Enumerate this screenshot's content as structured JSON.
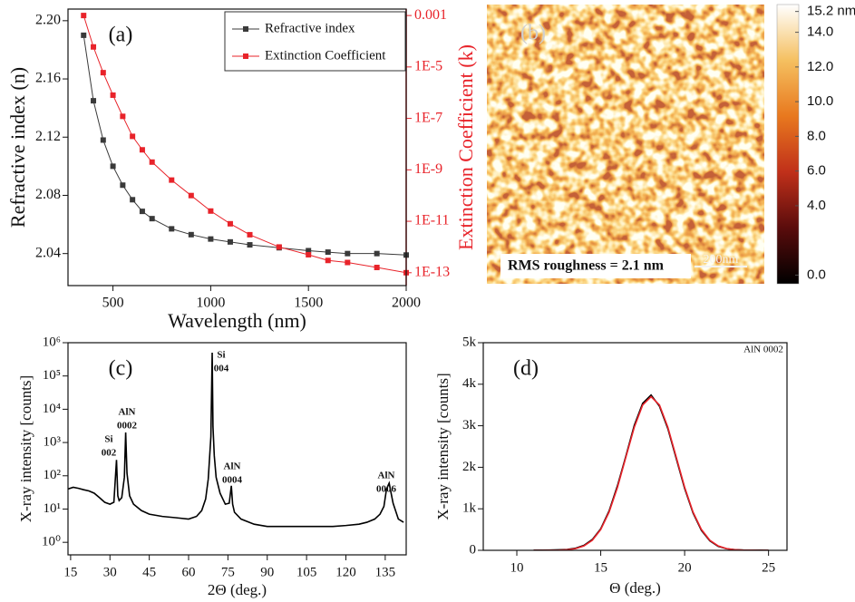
{
  "chart_data": [
    {
      "type": "line",
      "label": "(a)",
      "xlabel": "Wavelength (nm)",
      "ylabel": "Refractive index (n)",
      "y2label": "Extinction Coefficient (k)",
      "x": [
        350,
        400,
        450,
        500,
        550,
        600,
        650,
        700,
        800,
        900,
        1000,
        1100,
        1200,
        1350,
        1500,
        1600,
        1700,
        1850,
        2000
      ],
      "series": [
        {
          "name": "Refractive index",
          "color": "#3a3a3a",
          "values": [
            2.19,
            2.145,
            2.118,
            2.1,
            2.087,
            2.077,
            2.069,
            2.064,
            2.057,
            2.053,
            2.05,
            2.048,
            2.046,
            2.044,
            2.042,
            2.041,
            2.04,
            2.04,
            2.039
          ]
        },
        {
          "name": "Extinction Coefficient",
          "color": "#e8232a",
          "axis": "y2",
          "values": [
            0.001,
            6e-05,
            6e-06,
            8e-07,
            1.2e-07,
            2e-08,
            6e-09,
            2e-09,
            4e-10,
            1e-10,
            2.5e-11,
            8e-12,
            3e-12,
            1e-12,
            5e-13,
            3e-13,
            2.5e-13,
            1.6e-13,
            1e-13
          ]
        }
      ],
      "xlim": [
        270,
        2000
      ],
      "xticks": [
        500,
        1000,
        1500,
        2000
      ],
      "ylim": [
        2.018,
        2.208
      ],
      "yticks": [
        2.04,
        2.08,
        2.12,
        2.16,
        {
          "value": 2.2,
          "label": "2.20"
        }
      ],
      "y2lim": [
        3.16e-14,
        0.00178
      ],
      "y2log": true,
      "y2ticks": [
        0.001,
        {
          "value": 1e-05,
          "label": "1E-5"
        },
        {
          "value": 1e-07,
          "label": "1E-7"
        },
        {
          "value": 1e-09,
          "label": "1E-9"
        },
        {
          "value": 1e-11,
          "label": "1E-11"
        },
        {
          "value": 1e-13,
          "label": "1E-13"
        }
      ],
      "markers": "square",
      "legend": "upper right"
    },
    {
      "type": "image",
      "label": "(b)",
      "annotation": "RMS roughness = 2.1 nm",
      "scale_bar": "200nm",
      "colorbar": {
        "lim": [
          -0.5,
          15.6
        ],
        "colormap": [
          "#000000",
          "#5a0c0c",
          "#c0301a",
          "#e8781e",
          "#f5c060",
          "#ffffff"
        ],
        "ticks": [
          {
            "value": 0,
            "label": "0.0"
          },
          {
            "value": 4,
            "label": "4.0"
          },
          {
            "value": 6,
            "label": "6.0"
          },
          {
            "value": 8,
            "label": "8.0"
          },
          {
            "value": 10,
            "label": "10.0"
          },
          {
            "value": 12,
            "label": "12.0"
          },
          {
            "value": 14,
            "label": "14.0"
          },
          {
            "value": 15.2,
            "label": "15.2 nm"
          }
        ]
      }
    },
    {
      "type": "line",
      "label": "(c)",
      "xlabel": "2Θ (deg.)",
      "ylabel": "X-ray intensity [counts]",
      "x": [
        14,
        16,
        18,
        20,
        22,
        24,
        26,
        28,
        30,
        31.5,
        32.5,
        33,
        33.5,
        34.5,
        35.5,
        36,
        36.5,
        37.5,
        39,
        42,
        45,
        50,
        55,
        60,
        63,
        65,
        66.5,
        67.5,
        68.5,
        69,
        69.3,
        69.8,
        70.5,
        72,
        74,
        75.5,
        76.3,
        76.8,
        77.5,
        80,
        85,
        90,
        95,
        100,
        105,
        110,
        115,
        120,
        125,
        128,
        131,
        133,
        134.5,
        135.5,
        136.5,
        138,
        140,
        142
      ],
      "series": [
        {
          "color": "#000000",
          "values": [
            40,
            45,
            42,
            38,
            35,
            30,
            22,
            16,
            14,
            16,
            300,
            25,
            18,
            22,
            90,
            2000,
            120,
            25,
            14,
            9,
            7,
            6,
            5.5,
            5,
            6,
            9,
            20,
            80,
            1500,
            500000,
            3000,
            400,
            90,
            30,
            14,
            15,
            50,
            14,
            8,
            5,
            3.5,
            3,
            3,
            3,
            3,
            3,
            3,
            3.2,
            3.5,
            4,
            5,
            7,
            12,
            40,
            60,
            15,
            5,
            4
          ]
        }
      ],
      "xlim": [
        14,
        143
      ],
      "xticks": [
        15,
        30,
        45,
        60,
        75,
        90,
        105,
        120,
        135
      ],
      "ylim": [
        0.42,
        1000000
      ],
      "ylog": true,
      "yticks": [
        {
          "value": 1,
          "label": "10⁰"
        },
        {
          "value": 10,
          "label": "10¹"
        },
        {
          "value": 100,
          "label": "10²"
        },
        {
          "value": 1000,
          "label": "10³"
        },
        {
          "value": 10000,
          "label": "10⁴"
        },
        {
          "value": 100000,
          "label": "10⁵"
        },
        {
          "value": 1000000,
          "label": "10⁶"
        }
      ],
      "annotations": [
        {
          "lines": [
            "Si",
            "002"
          ]
        },
        {
          "lines": [
            "AlN",
            "0002"
          ]
        },
        {
          "lines": [
            "Si",
            "004"
          ]
        },
        {
          "lines": [
            "AlN",
            "0004"
          ]
        },
        {
          "lines": [
            "AlN",
            "0006"
          ]
        }
      ]
    },
    {
      "type": "line",
      "label": "(d)",
      "xlabel": "Θ (deg.)",
      "ylabel": "X-ray intensity [counts]",
      "annotation": "AlN 0002",
      "x": [
        11,
        11.5,
        12,
        12.5,
        13,
        13.5,
        14,
        14.5,
        15,
        15.5,
        16,
        16.5,
        17,
        17.5,
        18,
        18.5,
        19,
        19.5,
        20,
        20.5,
        21,
        21.5,
        22,
        22.5,
        23,
        23.5,
        24,
        24.5,
        25
      ],
      "series": [
        {
          "color": "#000000",
          "values": [
            3,
            5,
            8,
            12,
            20,
            50,
            120,
            260,
            520,
            950,
            1560,
            2270,
            3010,
            3540,
            3740,
            3470,
            2930,
            2210,
            1490,
            900,
            480,
            230,
            95,
            38,
            15,
            7,
            4,
            3,
            2
          ]
        },
        {
          "color": "#e8232a",
          "values": [
            0,
            0,
            1,
            4,
            14,
            41,
            106,
            243,
            501,
            922,
            1521,
            2244,
            2964,
            3500,
            3700,
            3500,
            2964,
            2244,
            1521,
            922,
            501,
            243,
            106,
            41,
            14,
            4,
            1,
            0,
            0
          ]
        }
      ],
      "xlim": [
        8,
        26.1
      ],
      "xticks": [
        10,
        15,
        20,
        25
      ],
      "ylim": [
        0,
        5000
      ],
      "yticks": [
        0,
        {
          "value": 1000,
          "label": "1k"
        },
        {
          "value": 2000,
          "label": "2k"
        },
        {
          "value": 3000,
          "label": "3k"
        },
        {
          "value": 4000,
          "label": "4k"
        },
        {
          "value": 5000,
          "label": "5k"
        }
      ]
    }
  ]
}
